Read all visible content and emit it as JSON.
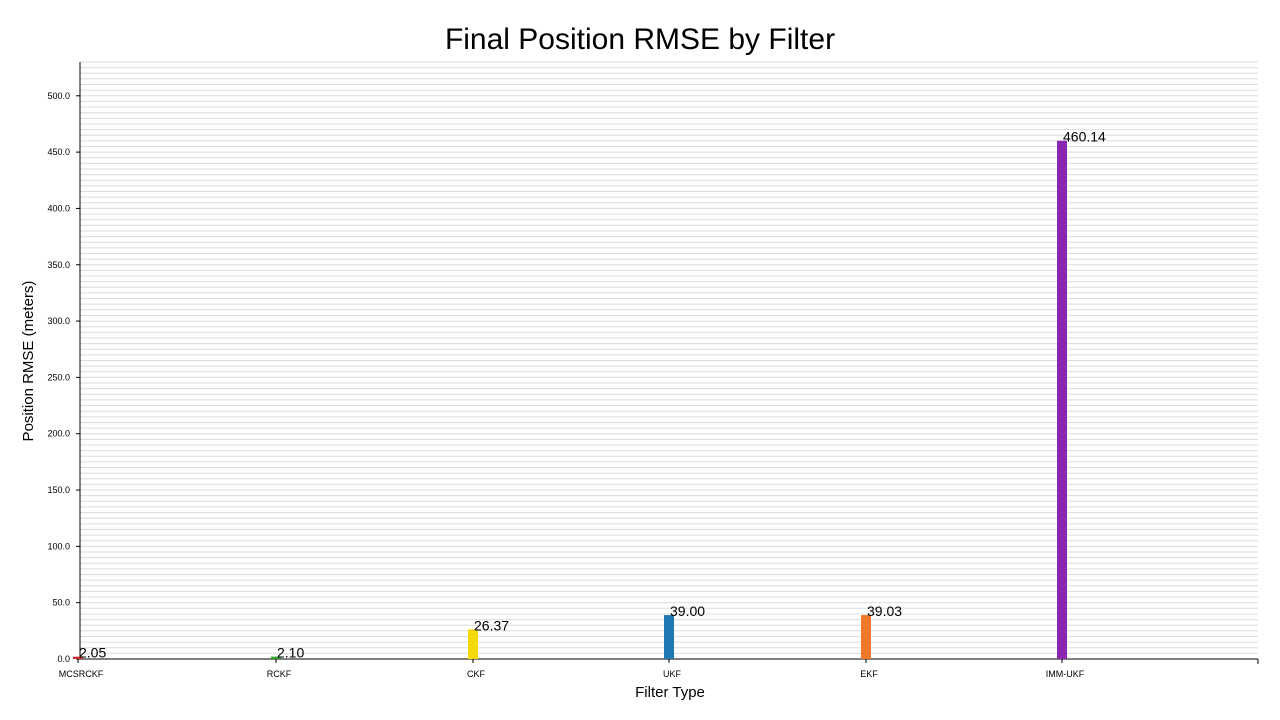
{
  "chart_data": {
    "type": "bar",
    "title": "Final Position RMSE by Filter",
    "xlabel": "Filter Type",
    "ylabel": "Position RMSE (meters)",
    "categories": [
      "MCSRCKF",
      "RCKF",
      "CKF",
      "UKF",
      "EKF",
      "IMM-UKF"
    ],
    "values": [
      2.05,
      2.1,
      26.37,
      39.0,
      39.03,
      460.14
    ],
    "value_labels": [
      "2.05",
      "2.10",
      "26.37",
      "39.00",
      "39.03",
      "460.14"
    ],
    "colors": [
      "#d62728",
      "#2ca02c",
      "#f5d90a",
      "#1f77b4",
      "#f0782a",
      "#8a27b0"
    ],
    "ylim": [
      0,
      530
    ],
    "yticks": [
      0,
      50,
      100,
      150,
      200,
      250,
      300,
      350,
      400,
      450,
      500
    ],
    "ytick_labels": [
      "0.0",
      "50.0",
      "100.0",
      "150.0",
      "200.0",
      "250.0",
      "300.0",
      "350.0",
      "400.0",
      "450.0",
      "500.0"
    ],
    "minor_grid_step": 5,
    "grid": true,
    "legend": "none"
  }
}
